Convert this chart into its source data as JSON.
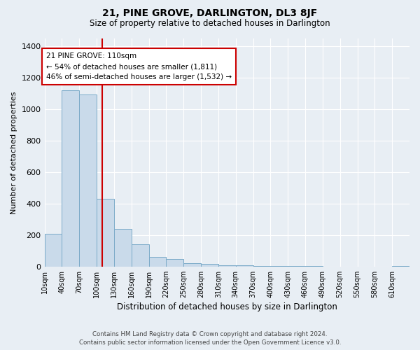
{
  "title": "21, PINE GROVE, DARLINGTON, DL3 8JF",
  "subtitle": "Size of property relative to detached houses in Darlington",
  "xlabel": "Distribution of detached houses by size in Darlington",
  "ylabel": "Number of detached properties",
  "bar_color": "#c9daea",
  "bar_edge_color": "#7aaac8",
  "bin_labels": [
    "10sqm",
    "40sqm",
    "70sqm",
    "100sqm",
    "130sqm",
    "160sqm",
    "190sqm",
    "220sqm",
    "250sqm",
    "280sqm",
    "310sqm",
    "340sqm",
    "370sqm",
    "400sqm",
    "430sqm",
    "460sqm",
    "490sqm",
    "520sqm",
    "550sqm",
    "580sqm",
    "610sqm"
  ],
  "bar_heights": [
    210,
    1120,
    1095,
    430,
    240,
    140,
    62,
    48,
    20,
    15,
    10,
    8,
    5,
    3,
    2,
    2,
    0,
    0,
    0,
    0,
    3
  ],
  "ylim": [
    0,
    1450
  ],
  "yticks": [
    0,
    200,
    400,
    600,
    800,
    1000,
    1200,
    1400
  ],
  "vline_x": 110,
  "annotation_title": "21 PINE GROVE: 110sqm",
  "annotation_line1": "← 54% of detached houses are smaller (1,811)",
  "annotation_line2": "46% of semi-detached houses are larger (1,532) →",
  "annotation_box_color": "#ffffff",
  "annotation_box_edge": "#cc0000",
  "vline_color": "#cc0000",
  "footer_line1": "Contains HM Land Registry data © Crown copyright and database right 2024.",
  "footer_line2": "Contains public sector information licensed under the Open Government Licence v3.0.",
  "bg_color": "#e8eef4"
}
